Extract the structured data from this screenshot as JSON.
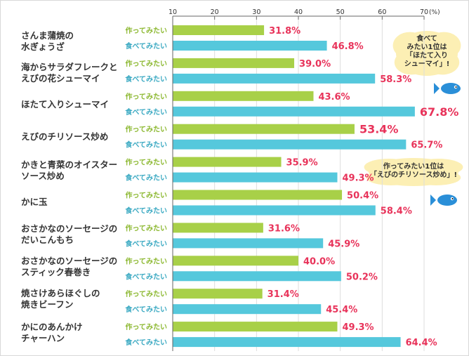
{
  "chart_data": {
    "type": "bar",
    "orientation": "horizontal",
    "unit": "(%)",
    "xlim": [
      10,
      70
    ],
    "ticks": [
      10,
      20,
      30,
      40,
      50,
      60,
      70
    ],
    "grid": true,
    "categories": [
      "さんま蒲焼の\n水ぎょうざ",
      "海からサラダフレークと\nえびの花シューマイ",
      "ほたて入りシューマイ",
      "えびのチリソース炒め",
      "かきと青菜のオイスター\nソース炒め",
      "かに玉",
      "おさかなのソーセージの\nだいこんもち",
      "おさかなのソーセージの\nスティック春巻き",
      "焼さけあらほぐしの\n焼きビーフン",
      "かにのあんかけ\nチャーハン"
    ],
    "series": [
      {
        "name": "作ってみたい",
        "color": "#a8d048",
        "values": [
          31.8,
          39.0,
          43.6,
          53.4,
          35.9,
          50.4,
          31.6,
          40.0,
          31.4,
          49.3
        ],
        "labels": [
          "31.8%",
          "39.0%",
          "43.6%",
          "53.4%",
          "35.9%",
          "50.4%",
          "31.6%",
          "40.0%",
          "31.4%",
          "49.3%"
        ]
      },
      {
        "name": "食べてみたい",
        "color": "#55c8dc",
        "values": [
          46.8,
          58.3,
          67.8,
          65.7,
          49.3,
          58.4,
          45.9,
          50.2,
          45.4,
          64.4
        ],
        "labels": [
          "46.8%",
          "58.3%",
          "67.8%",
          "65.7%",
          "49.3%",
          "58.4%",
          "45.9%",
          "50.2%",
          "45.4%",
          "64.4%"
        ]
      }
    ],
    "highlight": {
      "series_index": [
        1,
        0
      ],
      "category_index": [
        2,
        3
      ]
    },
    "label_color": "#e8335a",
    "annotations": [
      "食べて\nみたい1位は\n「ほたて入り\nシューマイ」!",
      "作ってみたい1位は\n「えびのチリソース炒め」!"
    ]
  }
}
